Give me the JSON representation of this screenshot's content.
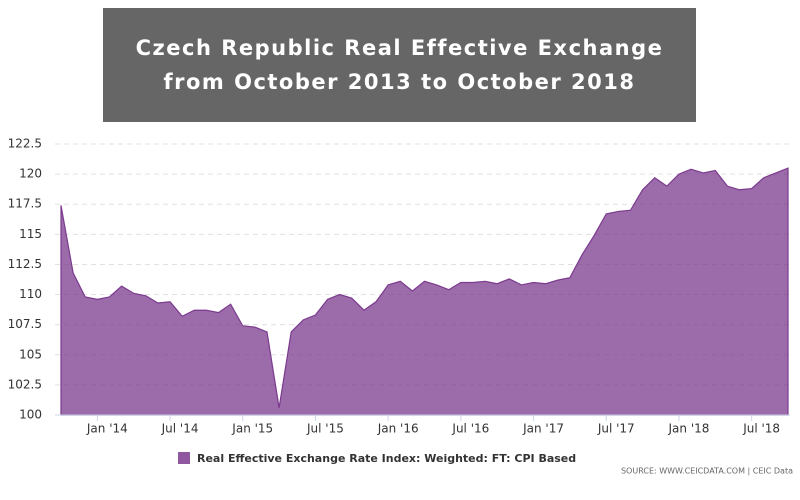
{
  "chart_data": {
    "type": "area",
    "title": "Czech Republic Real Effective Exchange from October 2013 to October 2018",
    "x": [
      "2013-10",
      "2013-11",
      "2013-12",
      "2014-01",
      "2014-02",
      "2014-03",
      "2014-04",
      "2014-05",
      "2014-06",
      "2014-07",
      "2014-08",
      "2014-09",
      "2014-10",
      "2014-11",
      "2014-12",
      "2015-01",
      "2015-02",
      "2015-03",
      "2015-04",
      "2015-05",
      "2015-06",
      "2015-07",
      "2015-08",
      "2015-09",
      "2015-10",
      "2015-11",
      "2015-12",
      "2016-01",
      "2016-02",
      "2016-03",
      "2016-04",
      "2016-05",
      "2016-06",
      "2016-07",
      "2016-08",
      "2016-09",
      "2016-10",
      "2016-11",
      "2016-12",
      "2017-01",
      "2017-02",
      "2017-03",
      "2017-04",
      "2017-05",
      "2017-06",
      "2017-07",
      "2017-08",
      "2017-09",
      "2017-10",
      "2017-11",
      "2017-12",
      "2018-01",
      "2018-02",
      "2018-03",
      "2018-04",
      "2018-05",
      "2018-06",
      "2018-07",
      "2018-08",
      "2018-09",
      "2018-10"
    ],
    "series": [
      {
        "name": "Real Effective Exchange Rate Index: Weighted: FT: CPI Based",
        "color": "#7b3a8e",
        "values": [
          117.4,
          111.8,
          109.8,
          109.6,
          109.8,
          110.7,
          110.1,
          109.9,
          109.3,
          109.4,
          108.2,
          108.7,
          108.7,
          108.5,
          109.2,
          107.4,
          107.3,
          106.9,
          100.6,
          106.9,
          107.9,
          108.3,
          109.6,
          110.0,
          109.7,
          108.7,
          109.4,
          110.8,
          111.1,
          110.3,
          111.1,
          110.8,
          110.4,
          111.0,
          111.0,
          111.1,
          110.9,
          111.3,
          110.8,
          111.0,
          110.9,
          111.2,
          111.4,
          113.3,
          114.9,
          116.7,
          116.9,
          117.0,
          118.7,
          119.7,
          119.0,
          120.0,
          120.4,
          120.1,
          120.3,
          119.0,
          118.7,
          118.8,
          119.7,
          120.1,
          120.5
        ]
      }
    ],
    "xlim": [
      "2013-10",
      "2018-10"
    ],
    "xticks": [
      {
        "value": "2014-01",
        "label": "Jan '14"
      },
      {
        "value": "2014-07",
        "label": "Jul '14"
      },
      {
        "value": "2015-01",
        "label": "Jan '15"
      },
      {
        "value": "2015-07",
        "label": "Jul '15"
      },
      {
        "value": "2016-01",
        "label": "Jan '16"
      },
      {
        "value": "2016-07",
        "label": "Jul '16"
      },
      {
        "value": "2017-01",
        "label": "Jan '17"
      },
      {
        "value": "2017-07",
        "label": "Jul '17"
      },
      {
        "value": "2018-01",
        "label": "Jan '18"
      },
      {
        "value": "2018-07",
        "label": "Jul '18"
      }
    ],
    "ylim": [
      100,
      122.5
    ],
    "yticks": [
      100,
      102.5,
      105,
      107.5,
      110,
      112.5,
      115,
      117.5,
      120,
      122.5
    ],
    "grid": true,
    "source": "SOURCE: WWW.CEICDATA.COM | CEIC Data"
  }
}
